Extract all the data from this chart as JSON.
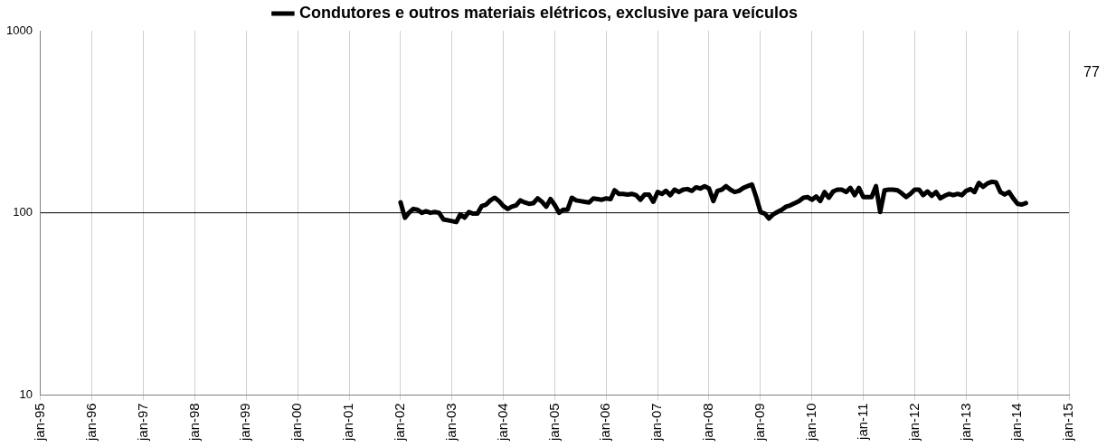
{
  "chart_data": {
    "type": "line",
    "legend": "top",
    "grid": "x",
    "ref_lines": [
      {
        "axis": "y",
        "value": 100,
        "color": "#000000"
      }
    ],
    "log": "y",
    "marker": "none",
    "line_style": "solid",
    "annotations": [
      "77"
    ],
    "ylim": [
      10,
      1000
    ],
    "yticks": [
      10,
      100,
      1000
    ],
    "xlim": [
      "1995-01",
      "2015-01"
    ],
    "xticks": [
      {
        "value": "1995-01",
        "label": "jan-95"
      },
      {
        "value": "1996-01",
        "label": "jan-96"
      },
      {
        "value": "1997-01",
        "label": "jan-97"
      },
      {
        "value": "1998-01",
        "label": "jan-98"
      },
      {
        "value": "1999-01",
        "label": "jan-99"
      },
      {
        "value": "2000-01",
        "label": "jan-00"
      },
      {
        "value": "2001-01",
        "label": "jan-01"
      },
      {
        "value": "2002-01",
        "label": "jan-02"
      },
      {
        "value": "2003-01",
        "label": "jan-03"
      },
      {
        "value": "2004-01",
        "label": "jan-04"
      },
      {
        "value": "2005-01",
        "label": "jan-05"
      },
      {
        "value": "2006-01",
        "label": "jan-06"
      },
      {
        "value": "2007-01",
        "label": "jan-07"
      },
      {
        "value": "2008-01",
        "label": "jan-08"
      },
      {
        "value": "2009-01",
        "label": "jan-09"
      },
      {
        "value": "2010-01",
        "label": "jan-10"
      },
      {
        "value": "2011-01",
        "label": "jan-11"
      },
      {
        "value": "2012-01",
        "label": "jan-12"
      },
      {
        "value": "2013-01",
        "label": "jan-13"
      },
      {
        "value": "2014-01",
        "label": "jan-14"
      },
      {
        "value": "2015-01",
        "label": "jan-15"
      }
    ],
    "x": [
      "2002-01",
      "2002-02",
      "2002-03",
      "2002-04",
      "2002-05",
      "2002-06",
      "2002-07",
      "2002-08",
      "2002-09",
      "2002-10",
      "2002-11",
      "2002-12",
      "2003-01",
      "2003-02",
      "2003-03",
      "2003-04",
      "2003-05",
      "2003-06",
      "2003-07",
      "2003-08",
      "2003-09",
      "2003-10",
      "2003-11",
      "2003-12",
      "2004-01",
      "2004-02",
      "2004-03",
      "2004-04",
      "2004-05",
      "2004-06",
      "2004-07",
      "2004-08",
      "2004-09",
      "2004-10",
      "2004-11",
      "2004-12",
      "2005-01",
      "2005-02",
      "2005-03",
      "2005-04",
      "2005-05",
      "2005-06",
      "2005-07",
      "2005-08",
      "2005-09",
      "2005-10",
      "2005-11",
      "2005-12",
      "2006-01",
      "2006-02",
      "2006-03",
      "2006-04",
      "2006-05",
      "2006-06",
      "2006-07",
      "2006-08",
      "2006-09",
      "2006-10",
      "2006-11",
      "2006-12",
      "2007-01",
      "2007-02",
      "2007-03",
      "2007-04",
      "2007-05",
      "2007-06",
      "2007-07",
      "2007-08",
      "2007-09",
      "2007-10",
      "2007-11",
      "2007-12",
      "2008-01",
      "2008-02",
      "2008-03",
      "2008-04",
      "2008-05",
      "2008-06",
      "2008-07",
      "2008-08",
      "2008-09",
      "2008-10",
      "2008-11",
      "2008-12",
      "2009-01",
      "2009-02",
      "2009-03",
      "2009-04",
      "2009-05",
      "2009-06",
      "2009-07",
      "2009-08",
      "2009-09",
      "2009-10",
      "2009-11",
      "2009-12",
      "2010-01",
      "2010-02",
      "2010-03",
      "2010-04",
      "2010-05",
      "2010-06",
      "2010-07",
      "2010-08",
      "2010-09",
      "2010-10",
      "2010-11",
      "2010-12",
      "2011-01",
      "2011-02",
      "2011-03",
      "2011-04",
      "2011-05",
      "2011-06",
      "2011-07",
      "2011-08",
      "2011-09",
      "2011-10",
      "2011-11",
      "2011-12",
      "2012-01",
      "2012-02",
      "2012-03",
      "2012-04",
      "2012-05",
      "2012-06",
      "2012-07",
      "2012-08",
      "2012-09",
      "2012-10",
      "2012-11",
      "2012-12",
      "2013-01",
      "2013-02",
      "2013-03",
      "2013-04",
      "2013-05",
      "2013-06",
      "2013-07",
      "2013-08",
      "2013-09",
      "2013-10",
      "2013-11",
      "2013-12",
      "2014-01",
      "2014-02",
      "2014-03"
    ],
    "series": [
      {
        "name": "Condutores e outros materiais elétricos, exclusive para veículos",
        "color": "#000000",
        "values": [
          114,
          94,
          100,
          105,
          104,
          100,
          102,
          100,
          101,
          100,
          92,
          91,
          90,
          89,
          98,
          94,
          101,
          99,
          99,
          109,
          111,
          117,
          121,
          116,
          109,
          105,
          108,
          110,
          117,
          114,
          112,
          113,
          120,
          115,
          108,
          119,
          110,
          100,
          104,
          104,
          121,
          117,
          116,
          115,
          114,
          120,
          119,
          118,
          120,
          119,
          133,
          127,
          127,
          126,
          127,
          125,
          118,
          126,
          126,
          115,
          130,
          127,
          132,
          125,
          134,
          130,
          134,
          135,
          132,
          138,
          136,
          140,
          136,
          116,
          132,
          134,
          140,
          134,
          130,
          132,
          137,
          140,
          143,
          122,
          101,
          99,
          93,
          98,
          101,
          104,
          108,
          110,
          113,
          116,
          121,
          122,
          118,
          123,
          116,
          130,
          121,
          131,
          134,
          134,
          130,
          137,
          125,
          137,
          122,
          122,
          122,
          140,
          101,
          133,
          134,
          134,
          133,
          128,
          122,
          127,
          134,
          134,
          125,
          131,
          124,
          130,
          120,
          124,
          127,
          125,
          127,
          125,
          132,
          135,
          130,
          146,
          139,
          145,
          148,
          147,
          130,
          126,
          130,
          120,
          112,
          111,
          113
        ]
      }
    ]
  }
}
